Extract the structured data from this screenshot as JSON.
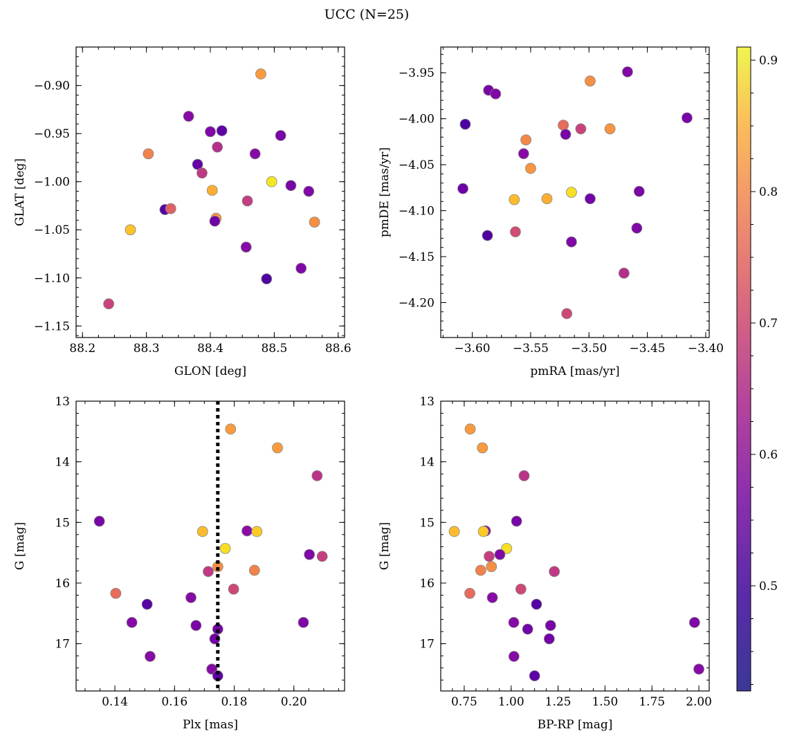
{
  "title": "UCC (N=25)",
  "colorbar": {
    "cmap": "plasma",
    "range": [
      0.42,
      0.91
    ],
    "ticks": [
      "0.5",
      "0.6",
      "0.7",
      "0.8",
      "0.9"
    ]
  },
  "chart_data": [
    {
      "type": "scatter",
      "xlabel": "GLON [deg]",
      "ylabel": "GLAT [deg]",
      "xlim": [
        88.19,
        88.61
      ],
      "ylim": [
        -1.162,
        -0.86
      ],
      "xticks": [
        "88.2",
        "88.3",
        "88.4",
        "88.5",
        "88.6"
      ],
      "yticks": [
        "−0.90",
        "−0.95",
        "−1.00",
        "−1.05",
        "−1.10",
        "−1.15"
      ],
      "points": [
        {
          "x": 88.479,
          "y": -0.888,
          "c": 0.8
        },
        {
          "x": 88.366,
          "y": -0.932,
          "c": 0.52
        },
        {
          "x": 88.4,
          "y": -0.948,
          "c": 0.51
        },
        {
          "x": 88.418,
          "y": -0.947,
          "c": 0.46
        },
        {
          "x": 88.51,
          "y": -0.952,
          "c": 0.5
        },
        {
          "x": 88.411,
          "y": -0.964,
          "c": 0.6
        },
        {
          "x": 88.47,
          "y": -0.971,
          "c": 0.52
        },
        {
          "x": 88.303,
          "y": -0.971,
          "c": 0.76
        },
        {
          "x": 88.38,
          "y": -0.982,
          "c": 0.47
        },
        {
          "x": 88.387,
          "y": -0.991,
          "c": 0.62
        },
        {
          "x": 88.496,
          "y": -1.0,
          "c": 0.91
        },
        {
          "x": 88.526,
          "y": -1.004,
          "c": 0.5
        },
        {
          "x": 88.403,
          "y": -1.009,
          "c": 0.83
        },
        {
          "x": 88.554,
          "y": -1.01,
          "c": 0.51
        },
        {
          "x": 88.458,
          "y": -1.02,
          "c": 0.63
        },
        {
          "x": 88.329,
          "y": -1.029,
          "c": 0.45
        },
        {
          "x": 88.338,
          "y": -1.028,
          "c": 0.7
        },
        {
          "x": 88.409,
          "y": -1.038,
          "c": 0.79
        },
        {
          "x": 88.407,
          "y": -1.041,
          "c": 0.49
        },
        {
          "x": 88.563,
          "y": -1.042,
          "c": 0.78
        },
        {
          "x": 88.275,
          "y": -1.05,
          "c": 0.86
        },
        {
          "x": 88.456,
          "y": -1.068,
          "c": 0.52
        },
        {
          "x": 88.542,
          "y": -1.09,
          "c": 0.51
        },
        {
          "x": 88.488,
          "y": -1.101,
          "c": 0.44
        },
        {
          "x": 88.241,
          "y": -1.127,
          "c": 0.64
        }
      ]
    },
    {
      "type": "scatter",
      "xlabel": "pmRA [mas/yr]",
      "ylabel": "pmDE [mas/yr]",
      "xlim": [
        -3.627,
        -3.397
      ],
      "ylim": [
        -4.238,
        -3.922
      ],
      "xticks": [
        "−3.60",
        "−3.55",
        "−3.50",
        "−3.45",
        "−3.40"
      ],
      "yticks": [
        "−3.95",
        "−4.00",
        "−4.05",
        "−4.10",
        "−4.15",
        "−4.20"
      ],
      "points": [
        {
          "x": -3.467,
          "y": -3.949,
          "c": 0.51
        },
        {
          "x": -3.586,
          "y": -3.969,
          "c": 0.5
        },
        {
          "x": -3.58,
          "y": -3.973,
          "c": 0.51
        },
        {
          "x": -3.499,
          "y": -3.959,
          "c": 0.78
        },
        {
          "x": -3.416,
          "y": -3.999,
          "c": 0.5
        },
        {
          "x": -3.606,
          "y": -4.006,
          "c": 0.44
        },
        {
          "x": -3.522,
          "y": -4.007,
          "c": 0.72
        },
        {
          "x": -3.507,
          "y": -4.011,
          "c": 0.64
        },
        {
          "x": -3.482,
          "y": -4.011,
          "c": 0.79
        },
        {
          "x": -3.52,
          "y": -4.017,
          "c": 0.5
        },
        {
          "x": -3.554,
          "y": -4.023,
          "c": 0.77
        },
        {
          "x": -3.556,
          "y": -4.038,
          "c": 0.52
        },
        {
          "x": -3.55,
          "y": -4.054,
          "c": 0.79
        },
        {
          "x": -3.608,
          "y": -4.076,
          "c": 0.48
        },
        {
          "x": -3.515,
          "y": -4.08,
          "c": 0.9
        },
        {
          "x": -3.457,
          "y": -4.079,
          "c": 0.5
        },
        {
          "x": -3.564,
          "y": -4.088,
          "c": 0.85
        },
        {
          "x": -3.536,
          "y": -4.087,
          "c": 0.83
        },
        {
          "x": -3.499,
          "y": -4.087,
          "c": 0.49
        },
        {
          "x": -3.459,
          "y": -4.119,
          "c": 0.51
        },
        {
          "x": -3.563,
          "y": -4.123,
          "c": 0.66
        },
        {
          "x": -3.587,
          "y": -4.127,
          "c": 0.44
        },
        {
          "x": -3.515,
          "y": -4.134,
          "c": 0.51
        },
        {
          "x": -3.47,
          "y": -4.168,
          "c": 0.6
        },
        {
          "x": -3.519,
          "y": -4.212,
          "c": 0.65
        }
      ]
    },
    {
      "type": "scatter",
      "xlabel": "Plx [mas]",
      "ylabel": "G [mag]",
      "xlim": [
        0.127,
        0.217
      ],
      "ylim": [
        17.78,
        13.0
      ],
      "invert_y": true,
      "vline": 0.1745,
      "xticks": [
        "0.14",
        "0.16",
        "0.18",
        "0.20"
      ],
      "yticks": [
        "13",
        "14",
        "15",
        "16",
        "17"
      ],
      "points": [
        {
          "x": 0.1788,
          "y": 13.46,
          "c": 0.8
        },
        {
          "x": 0.1945,
          "y": 13.77,
          "c": 0.8
        },
        {
          "x": 0.2078,
          "y": 14.23,
          "c": 0.61
        },
        {
          "x": 0.1348,
          "y": 14.98,
          "c": 0.5
        },
        {
          "x": 0.1843,
          "y": 15.14,
          "c": 0.53
        },
        {
          "x": 0.1694,
          "y": 15.15,
          "c": 0.85
        },
        {
          "x": 0.1876,
          "y": 15.15,
          "c": 0.87
        },
        {
          "x": 0.177,
          "y": 15.43,
          "c": 0.9
        },
        {
          "x": 0.2052,
          "y": 15.53,
          "c": 0.51
        },
        {
          "x": 0.2095,
          "y": 15.56,
          "c": 0.63
        },
        {
          "x": 0.1745,
          "y": 15.73,
          "c": 0.78
        },
        {
          "x": 0.1713,
          "y": 15.81,
          "c": 0.62
        },
        {
          "x": 0.1868,
          "y": 15.79,
          "c": 0.76
        },
        {
          "x": 0.1798,
          "y": 16.1,
          "c": 0.65
        },
        {
          "x": 0.1403,
          "y": 16.17,
          "c": 0.72
        },
        {
          "x": 0.1655,
          "y": 16.24,
          "c": 0.52
        },
        {
          "x": 0.1508,
          "y": 16.35,
          "c": 0.45
        },
        {
          "x": 0.1457,
          "y": 16.65,
          "c": 0.52
        },
        {
          "x": 0.2032,
          "y": 16.65,
          "c": 0.51
        },
        {
          "x": 0.1672,
          "y": 16.7,
          "c": 0.5
        },
        {
          "x": 0.1745,
          "y": 16.76,
          "c": 0.49
        },
        {
          "x": 0.1735,
          "y": 16.92,
          "c": 0.49
        },
        {
          "x": 0.1518,
          "y": 17.21,
          "c": 0.52
        },
        {
          "x": 0.1725,
          "y": 17.42,
          "c": 0.52
        },
        {
          "x": 0.1745,
          "y": 17.53,
          "c": 0.46
        }
      ]
    },
    {
      "type": "scatter",
      "xlabel": "BP-RP [mag]",
      "ylabel": "G [mag]",
      "xlim": [
        0.625,
        2.055
      ],
      "ylim": [
        17.78,
        13.0
      ],
      "invert_y": true,
      "xticks": [
        "0.75",
        "1.00",
        "1.25",
        "1.50",
        "1.75",
        "2.00"
      ],
      "yticks": [
        "13",
        "14",
        "15",
        "16",
        "17"
      ],
      "points": [
        {
          "x": 0.782,
          "y": 13.46,
          "c": 0.8
        },
        {
          "x": 0.847,
          "y": 13.77,
          "c": 0.8
        },
        {
          "x": 1.069,
          "y": 14.23,
          "c": 0.61
        },
        {
          "x": 1.029,
          "y": 14.98,
          "c": 0.5
        },
        {
          "x": 0.863,
          "y": 15.14,
          "c": 0.53
        },
        {
          "x": 0.697,
          "y": 15.15,
          "c": 0.85
        },
        {
          "x": 0.852,
          "y": 15.15,
          "c": 0.87
        },
        {
          "x": 0.976,
          "y": 15.43,
          "c": 0.9
        },
        {
          "x": 0.94,
          "y": 15.53,
          "c": 0.51
        },
        {
          "x": 0.883,
          "y": 15.56,
          "c": 0.63
        },
        {
          "x": 0.895,
          "y": 15.73,
          "c": 0.78
        },
        {
          "x": 1.23,
          "y": 15.81,
          "c": 0.62
        },
        {
          "x": 0.838,
          "y": 15.79,
          "c": 0.76
        },
        {
          "x": 1.052,
          "y": 16.1,
          "c": 0.65
        },
        {
          "x": 0.78,
          "y": 16.17,
          "c": 0.72
        },
        {
          "x": 0.9,
          "y": 16.24,
          "c": 0.52
        },
        {
          "x": 1.135,
          "y": 16.35,
          "c": 0.45
        },
        {
          "x": 1.014,
          "y": 16.65,
          "c": 0.52
        },
        {
          "x": 1.977,
          "y": 16.65,
          "c": 0.51
        },
        {
          "x": 1.21,
          "y": 16.7,
          "c": 0.5
        },
        {
          "x": 1.088,
          "y": 16.76,
          "c": 0.49
        },
        {
          "x": 1.203,
          "y": 16.92,
          "c": 0.49
        },
        {
          "x": 1.015,
          "y": 17.21,
          "c": 0.52
        },
        {
          "x": 2.0,
          "y": 17.42,
          "c": 0.52
        },
        {
          "x": 1.125,
          "y": 17.53,
          "c": 0.46
        }
      ]
    }
  ]
}
